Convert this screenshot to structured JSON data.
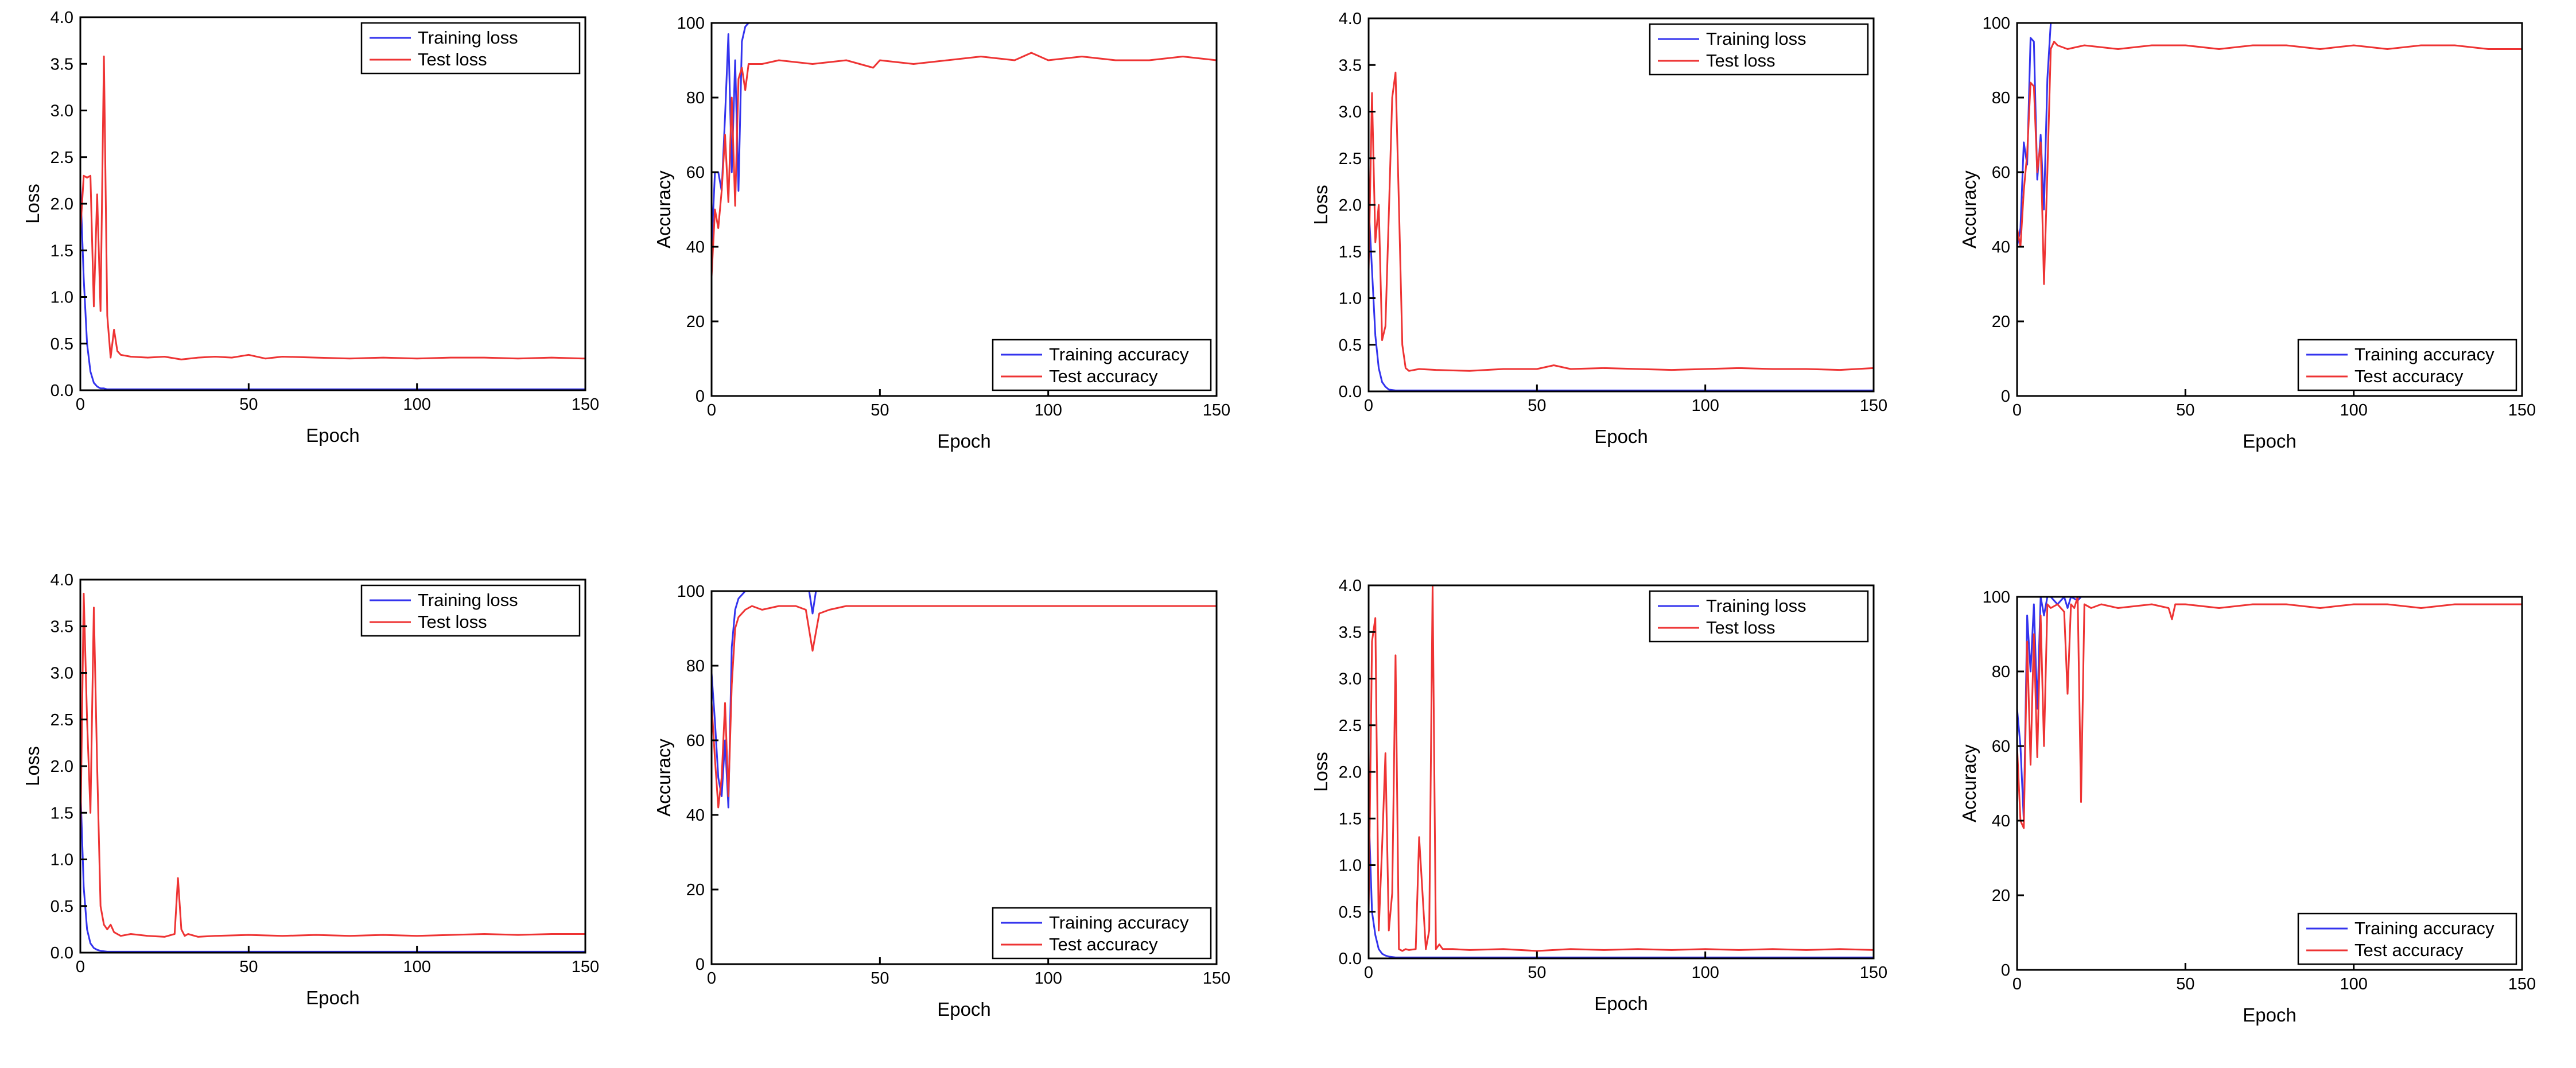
{
  "colors": {
    "training": "#3333ee",
    "test": "#ee3333"
  },
  "chart_data": [
    {
      "id": "loss-a",
      "type": "line",
      "xlabel": "Epoch",
      "ylabel": "Loss",
      "xlim": [
        0,
        150
      ],
      "ylim": [
        0,
        4
      ],
      "xticks": [
        0,
        50,
        100,
        150
      ],
      "xtick_labels": [
        "0",
        "50",
        "100",
        "150"
      ],
      "yticks": [
        0,
        0.5,
        1,
        1.5,
        2,
        2.5,
        3,
        3.5,
        4
      ],
      "ytick_labels": [
        "0.0",
        "0.5",
        "1.0",
        "1.5",
        "2.0",
        "2.5",
        "3.0",
        "3.5",
        "4.0"
      ],
      "legend_position": "top-right",
      "series": [
        {
          "name": "Training loss",
          "color": "#3333ee",
          "x": [
            0,
            1,
            2,
            3,
            4,
            5,
            6,
            7,
            8,
            9,
            10,
            150
          ],
          "y": [
            2.2,
            1.2,
            0.5,
            0.2,
            0.08,
            0.04,
            0.02,
            0.02,
            0.01,
            0.01,
            0.01,
            0.01
          ]
        },
        {
          "name": "Test loss",
          "color": "#ee3333",
          "x": [
            0,
            1,
            2,
            3,
            4,
            5,
            6,
            7,
            8,
            9,
            10,
            11,
            12,
            15,
            20,
            25,
            30,
            35,
            40,
            45,
            50,
            55,
            60,
            70,
            80,
            90,
            100,
            110,
            120,
            130,
            140,
            150
          ],
          "y": [
            1.7,
            2.3,
            2.28,
            2.3,
            0.9,
            2.1,
            0.85,
            3.58,
            0.8,
            0.35,
            0.65,
            0.42,
            0.38,
            0.36,
            0.35,
            0.36,
            0.33,
            0.35,
            0.36,
            0.35,
            0.38,
            0.34,
            0.36,
            0.35,
            0.34,
            0.35,
            0.34,
            0.35,
            0.35,
            0.34,
            0.35,
            0.34
          ]
        }
      ]
    },
    {
      "id": "acc-a",
      "type": "line",
      "xlabel": "Epoch",
      "ylabel": "Accuracy",
      "xlim": [
        0,
        150
      ],
      "ylim": [
        0,
        100
      ],
      "xticks": [
        0,
        50,
        100,
        150
      ],
      "xtick_labels": [
        "0",
        "50",
        "100",
        "150"
      ],
      "yticks": [
        0,
        20,
        40,
        60,
        80,
        100
      ],
      "ytick_labels": [
        "0",
        "20",
        "40",
        "60",
        "80",
        "100"
      ],
      "legend_position": "bottom-right",
      "series": [
        {
          "name": "Training accuracy",
          "color": "#3333ee",
          "x": [
            0,
            1,
            2,
            3,
            4,
            5,
            6,
            7,
            8,
            9,
            10,
            11,
            12,
            150
          ],
          "y": [
            40,
            60,
            60,
            55,
            75,
            97,
            60,
            90,
            55,
            95,
            99,
            100,
            100,
            100
          ]
        },
        {
          "name": "Test accuracy",
          "color": "#ee3333",
          "x": [
            0,
            1,
            2,
            3,
            4,
            5,
            6,
            7,
            8,
            9,
            10,
            11,
            12,
            15,
            20,
            30,
            40,
            48,
            50,
            60,
            70,
            80,
            90,
            95,
            100,
            110,
            120,
            130,
            140,
            150
          ],
          "y": [
            32,
            50,
            45,
            55,
            70,
            52,
            80,
            51,
            85,
            88,
            82,
            89,
            89,
            89,
            90,
            89,
            90,
            88,
            90,
            89,
            90,
            91,
            90,
            92,
            90,
            91,
            90,
            90,
            91,
            90
          ]
        }
      ]
    },
    {
      "id": "loss-b",
      "type": "line",
      "xlabel": "Epoch",
      "ylabel": "Loss",
      "xlim": [
        0,
        150
      ],
      "ylim": [
        0,
        4
      ],
      "xticks": [
        0,
        50,
        100,
        150
      ],
      "xtick_labels": [
        "0",
        "50",
        "100",
        "150"
      ],
      "yticks": [
        0,
        0.5,
        1,
        1.5,
        2,
        2.5,
        3,
        3.5,
        4
      ],
      "ytick_labels": [
        "0.0",
        "0.5",
        "1.0",
        "1.5",
        "2.0",
        "2.5",
        "3.0",
        "3.5",
        "4.0"
      ],
      "legend_position": "top-right",
      "series": [
        {
          "name": "Training loss",
          "color": "#3333ee",
          "x": [
            0,
            1,
            2,
            3,
            4,
            5,
            6,
            8,
            10,
            150
          ],
          "y": [
            2.0,
            1.3,
            0.6,
            0.25,
            0.1,
            0.05,
            0.02,
            0.01,
            0.01,
            0.01
          ]
        },
        {
          "name": "Test loss",
          "color": "#ee3333",
          "x": [
            0,
            1,
            2,
            3,
            4,
            5,
            6,
            7,
            8,
            9,
            10,
            11,
            12,
            15,
            20,
            30,
            40,
            50,
            55,
            60,
            70,
            80,
            90,
            100,
            110,
            120,
            130,
            140,
            150
          ],
          "y": [
            1.3,
            3.2,
            1.6,
            2.0,
            0.55,
            0.7,
            1.9,
            3.15,
            3.42,
            2.0,
            0.5,
            0.25,
            0.22,
            0.24,
            0.23,
            0.22,
            0.24,
            0.24,
            0.28,
            0.24,
            0.25,
            0.24,
            0.23,
            0.24,
            0.25,
            0.24,
            0.24,
            0.23,
            0.25
          ]
        }
      ]
    },
    {
      "id": "acc-b",
      "type": "line",
      "xlabel": "Epoch",
      "ylabel": "Accuracy",
      "xlim": [
        0,
        150
      ],
      "ylim": [
        0,
        100
      ],
      "xticks": [
        0,
        50,
        100,
        150
      ],
      "xtick_labels": [
        "0",
        "50",
        "100",
        "150"
      ],
      "yticks": [
        0,
        20,
        40,
        60,
        80,
        100
      ],
      "ytick_labels": [
        "0",
        "20",
        "40",
        "60",
        "80",
        "100"
      ],
      "legend_position": "bottom-right",
      "series": [
        {
          "name": "Training accuracy",
          "color": "#3333ee",
          "x": [
            0,
            1,
            2,
            3,
            4,
            5,
            6,
            7,
            8,
            9,
            10,
            11,
            150
          ],
          "y": [
            40,
            45,
            68,
            62,
            96,
            95,
            58,
            70,
            50,
            85,
            100,
            100,
            100
          ]
        },
        {
          "name": "Test accuracy",
          "color": "#ee3333",
          "x": [
            0,
            1,
            2,
            3,
            4,
            5,
            6,
            7,
            8,
            9,
            10,
            11,
            12,
            15,
            20,
            30,
            40,
            50,
            60,
            70,
            80,
            90,
            100,
            110,
            120,
            130,
            140,
            150
          ],
          "y": [
            45,
            40,
            55,
            65,
            84,
            83,
            60,
            68,
            30,
            60,
            93,
            95,
            94,
            93,
            94,
            93,
            94,
            94,
            93,
            94,
            94,
            93,
            94,
            93,
            94,
            94,
            93,
            93
          ]
        }
      ]
    },
    {
      "id": "loss-c",
      "type": "line",
      "xlabel": "Epoch",
      "ylabel": "Loss",
      "xlim": [
        0,
        150
      ],
      "ylim": [
        0,
        4
      ],
      "xticks": [
        0,
        50,
        100,
        150
      ],
      "xtick_labels": [
        "0",
        "50",
        "100",
        "150"
      ],
      "yticks": [
        0,
        0.5,
        1,
        1.5,
        2,
        2.5,
        3,
        3.5,
        4
      ],
      "ytick_labels": [
        "0.0",
        "0.5",
        "1.0",
        "1.5",
        "2.0",
        "2.5",
        "3.0",
        "3.5",
        "4.0"
      ],
      "legend_position": "top-right",
      "series": [
        {
          "name": "Training loss",
          "color": "#3333ee",
          "x": [
            0,
            1,
            2,
            3,
            4,
            5,
            6,
            8,
            150
          ],
          "y": [
            1.8,
            0.7,
            0.25,
            0.1,
            0.05,
            0.03,
            0.02,
            0.01,
            0.01
          ]
        },
        {
          "name": "Test loss",
          "color": "#ee3333",
          "x": [
            0,
            1,
            2,
            3,
            4,
            5,
            6,
            7,
            8,
            9,
            10,
            12,
            15,
            20,
            25,
            28,
            29,
            30,
            31,
            32,
            35,
            40,
            50,
            60,
            70,
            80,
            90,
            100,
            110,
            120,
            130,
            140,
            150
          ],
          "y": [
            1.2,
            3.85,
            2.5,
            1.5,
            3.7,
            2.0,
            0.5,
            0.3,
            0.25,
            0.3,
            0.22,
            0.18,
            0.2,
            0.18,
            0.17,
            0.2,
            0.8,
            0.25,
            0.18,
            0.2,
            0.17,
            0.18,
            0.19,
            0.18,
            0.19,
            0.18,
            0.19,
            0.18,
            0.19,
            0.2,
            0.19,
            0.2,
            0.2
          ]
        }
      ]
    },
    {
      "id": "acc-c",
      "type": "line",
      "xlabel": "Epoch",
      "ylabel": "Accuracy",
      "xlim": [
        0,
        150
      ],
      "ylim": [
        0,
        100
      ],
      "xticks": [
        0,
        50,
        100,
        150
      ],
      "xtick_labels": [
        "0",
        "50",
        "100",
        "150"
      ],
      "yticks": [
        0,
        20,
        40,
        60,
        80,
        100
      ],
      "ytick_labels": [
        "0",
        "20",
        "40",
        "60",
        "80",
        "100"
      ],
      "legend_position": "bottom-right",
      "series": [
        {
          "name": "Training accuracy",
          "color": "#3333ee",
          "x": [
            0,
            1,
            2,
            3,
            4,
            5,
            6,
            7,
            8,
            9,
            10,
            12,
            28,
            29,
            30,
            31,
            150
          ],
          "y": [
            78,
            65,
            50,
            45,
            60,
            42,
            85,
            95,
            98,
            99,
            100,
            100,
            100,
            100,
            94,
            100,
            100
          ]
        },
        {
          "name": "Test accuracy",
          "color": "#ee3333",
          "x": [
            0,
            1,
            2,
            3,
            4,
            5,
            6,
            7,
            8,
            9,
            10,
            12,
            15,
            20,
            25,
            28,
            30,
            32,
            35,
            40,
            50,
            60,
            70,
            80,
            90,
            100,
            110,
            120,
            130,
            140,
            150
          ],
          "y": [
            70,
            55,
            42,
            50,
            70,
            45,
            75,
            90,
            93,
            94,
            95,
            96,
            95,
            96,
            96,
            95,
            84,
            94,
            95,
            96,
            96,
            96,
            96,
            96,
            96,
            96,
            96,
            96,
            96,
            96,
            96
          ]
        }
      ]
    },
    {
      "id": "loss-d",
      "type": "line",
      "xlabel": "Epoch",
      "ylabel": "Loss",
      "xlim": [
        0,
        150
      ],
      "ylim": [
        0,
        4
      ],
      "xticks": [
        0,
        50,
        100,
        150
      ],
      "xtick_labels": [
        "0",
        "50",
        "100",
        "150"
      ],
      "yticks": [
        0,
        0.5,
        1,
        1.5,
        2,
        2.5,
        3,
        3.5,
        4
      ],
      "ytick_labels": [
        "0.0",
        "0.5",
        "1.0",
        "1.5",
        "2.0",
        "2.5",
        "3.0",
        "3.5",
        "4.0"
      ],
      "legend_position": "top-right",
      "series": [
        {
          "name": "Training loss",
          "color": "#3333ee",
          "x": [
            0,
            1,
            2,
            3,
            4,
            5,
            6,
            8,
            10,
            150
          ],
          "y": [
            1.6,
            0.5,
            0.25,
            0.1,
            0.05,
            0.03,
            0.02,
            0.01,
            0.01,
            0.01
          ]
        },
        {
          "name": "Test loss",
          "color": "#ee3333",
          "x": [
            0,
            1,
            2,
            3,
            4,
            5,
            6,
            7,
            8,
            9,
            10,
            11,
            12,
            14,
            15,
            16,
            17,
            18,
            19,
            20,
            21,
            22,
            25,
            30,
            40,
            50,
            60,
            70,
            80,
            90,
            100,
            110,
            120,
            130,
            140,
            150
          ],
          "y": [
            0.5,
            3.4,
            3.65,
            0.3,
            1.2,
            2.2,
            0.3,
            0.7,
            3.25,
            0.1,
            0.08,
            0.1,
            0.09,
            0.1,
            1.3,
            0.7,
            0.1,
            0.3,
            4.0,
            0.1,
            0.15,
            0.1,
            0.1,
            0.09,
            0.1,
            0.08,
            0.1,
            0.09,
            0.1,
            0.09,
            0.1,
            0.09,
            0.1,
            0.09,
            0.1,
            0.09
          ]
        }
      ]
    },
    {
      "id": "acc-d",
      "type": "line",
      "xlabel": "Epoch",
      "ylabel": "Accuracy",
      "xlim": [
        0,
        150
      ],
      "ylim": [
        0,
        100
      ],
      "xticks": [
        0,
        50,
        100,
        150
      ],
      "xtick_labels": [
        "0",
        "50",
        "100",
        "150"
      ],
      "yticks": [
        0,
        20,
        40,
        60,
        80,
        100
      ],
      "ytick_labels": [
        "0",
        "20",
        "40",
        "60",
        "80",
        "100"
      ],
      "legend_position": "bottom-right",
      "series": [
        {
          "name": "Training accuracy",
          "color": "#3333ee",
          "x": [
            0,
            1,
            2,
            3,
            4,
            5,
            6,
            7,
            8,
            9,
            10,
            12,
            14,
            15,
            16,
            18,
            19,
            20,
            22,
            150
          ],
          "y": [
            70,
            60,
            40,
            95,
            80,
            98,
            70,
            100,
            95,
            100,
            100,
            98,
            100,
            97,
            100,
            99,
            100,
            100,
            100,
            100
          ]
        },
        {
          "name": "Test accuracy",
          "color": "#ee3333",
          "x": [
            0,
            1,
            2,
            3,
            4,
            5,
            6,
            7,
            8,
            9,
            10,
            12,
            14,
            15,
            16,
            17,
            18,
            19,
            20,
            22,
            25,
            30,
            40,
            45,
            46,
            47,
            50,
            60,
            70,
            80,
            90,
            100,
            110,
            120,
            130,
            140,
            150
          ],
          "y": [
            60,
            40,
            38,
            88,
            55,
            90,
            57,
            95,
            60,
            98,
            97,
            98,
            96,
            74,
            98,
            97,
            100,
            45,
            98,
            97,
            98,
            97,
            98,
            97,
            94,
            98,
            98,
            97,
            98,
            98,
            97,
            98,
            98,
            97,
            98,
            98,
            98
          ]
        }
      ]
    }
  ]
}
